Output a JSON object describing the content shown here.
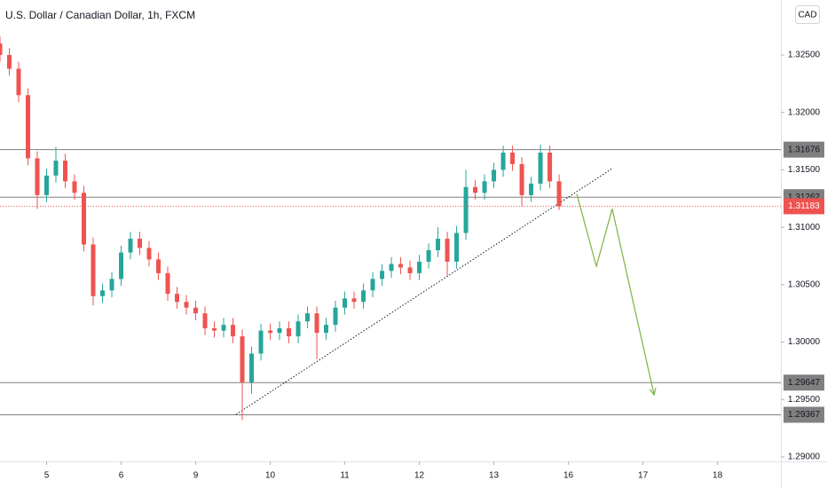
{
  "chart_data": {
    "type": "candlestick",
    "title": "U.S. Dollar / Canadian Dollar, 1h, FXCM",
    "currency": "CAD",
    "up_color": "#26a69a",
    "down_color": "#ef5350",
    "x": [
      0,
      3,
      6,
      9,
      12,
      15,
      18,
      21,
      24,
      27,
      30,
      33,
      36,
      39,
      42,
      45,
      48,
      51,
      54,
      57,
      60,
      63,
      66,
      69,
      72,
      75,
      78,
      81,
      84,
      87,
      90,
      93,
      96,
      99,
      102,
      105,
      108,
      111,
      114,
      117,
      120,
      123,
      126,
      129,
      132,
      135,
      138,
      141,
      144,
      147,
      150,
      153,
      156,
      159,
      162,
      165,
      168,
      171,
      174,
      177,
      180
    ],
    "open": [
      1.326,
      1.325,
      1.3238,
      1.3215,
      1.316,
      1.3128,
      1.3145,
      1.3158,
      1.314,
      1.313,
      1.3085,
      1.304,
      1.3045,
      1.3055,
      1.3078,
      1.309,
      1.3082,
      1.3072,
      1.306,
      1.3042,
      1.3035,
      1.303,
      1.3025,
      1.3012,
      1.301,
      1.3015,
      1.3005,
      1.2965,
      1.299,
      1.301,
      1.3008,
      1.3012,
      1.3005,
      1.3018,
      1.3025,
      1.3008,
      1.3015,
      1.303,
      1.3038,
      1.3035,
      1.3045,
      1.3055,
      1.3062,
      1.3068,
      1.3065,
      1.306,
      1.307,
      1.308,
      1.309,
      1.307,
      1.3095,
      1.3135,
      1.313,
      1.314,
      1.315,
      1.3165,
      1.3155,
      1.3128,
      1.3138,
      1.3165,
      1.314
    ],
    "high": [
      1.3266,
      1.3256,
      1.3244,
      1.3221,
      1.3166,
      1.3151,
      1.317,
      1.3164,
      1.3146,
      1.3136,
      1.3091,
      1.3051,
      1.3061,
      1.3084,
      1.3096,
      1.3096,
      1.3088,
      1.3078,
      1.3066,
      1.3048,
      1.3041,
      1.3036,
      1.3031,
      1.3018,
      1.3021,
      1.3021,
      1.3011,
      1.2996,
      1.3016,
      1.3016,
      1.3018,
      1.3018,
      1.3024,
      1.3031,
      1.3031,
      1.3021,
      1.3036,
      1.3044,
      1.3044,
      1.3051,
      1.3061,
      1.3068,
      1.3074,
      1.3074,
      1.3071,
      1.3076,
      1.3086,
      1.31,
      1.3096,
      1.3101,
      1.315,
      1.3141,
      1.3146,
      1.3156,
      1.3171,
      1.3171,
      1.3161,
      1.3144,
      1.3172,
      1.3171,
      1.3146
    ],
    "low": [
      1.3244,
      1.3232,
      1.3209,
      1.3154,
      1.3116,
      1.3122,
      1.3139,
      1.3134,
      1.3124,
      1.3079,
      1.3032,
      1.3034,
      1.3039,
      1.3049,
      1.3072,
      1.3076,
      1.3066,
      1.3054,
      1.3036,
      1.3029,
      1.3024,
      1.3019,
      1.3006,
      1.3004,
      1.3004,
      1.2999,
      1.2932,
      1.2955,
      1.2984,
      1.3002,
      1.3002,
      1.2999,
      1.2999,
      1.3012,
      1.2985,
      1.3002,
      1.3009,
      1.3024,
      1.3029,
      1.3029,
      1.3039,
      1.3049,
      1.3056,
      1.3059,
      1.3054,
      1.3054,
      1.3064,
      1.3074,
      1.3058,
      1.3064,
      1.3089,
      1.3124,
      1.3124,
      1.3134,
      1.3144,
      1.3149,
      1.3118,
      1.3122,
      1.3132,
      1.3134,
      1.3115
    ],
    "close": [
      1.325,
      1.3238,
      1.3215,
      1.316,
      1.3128,
      1.3145,
      1.3158,
      1.314,
      1.313,
      1.3085,
      1.304,
      1.3045,
      1.3055,
      1.3078,
      1.309,
      1.3082,
      1.3072,
      1.306,
      1.3042,
      1.3035,
      1.303,
      1.3025,
      1.3012,
      1.301,
      1.3015,
      1.3005,
      1.2965,
      1.299,
      1.301,
      1.3008,
      1.3012,
      1.3005,
      1.3018,
      1.3025,
      1.3008,
      1.3015,
      1.303,
      1.3038,
      1.3035,
      1.3045,
      1.3055,
      1.3062,
      1.3068,
      1.3065,
      1.306,
      1.307,
      1.308,
      1.309,
      1.307,
      1.3095,
      1.3135,
      1.313,
      1.314,
      1.315,
      1.3165,
      1.3155,
      1.3128,
      1.3138,
      1.3165,
      1.314,
      1.31183
    ],
    "xlim": [
      0,
      251.4
    ],
    "ylim": [
      1.28961,
      1.32979
    ],
    "xticks": [
      {
        "value": 15,
        "label": "5"
      },
      {
        "value": 39,
        "label": "6"
      },
      {
        "value": 63,
        "label": "9"
      },
      {
        "value": 87,
        "label": "10"
      },
      {
        "value": 111,
        "label": "11"
      },
      {
        "value": 135,
        "label": "12"
      },
      {
        "value": 159,
        "label": "13"
      },
      {
        "value": 183,
        "label": "16"
      },
      {
        "value": 207,
        "label": "17"
      },
      {
        "value": 231,
        "label": "18"
      }
    ],
    "yticks": [
      {
        "value": 1.325,
        "label": "1.32500"
      },
      {
        "value": 1.32,
        "label": "1.32000"
      },
      {
        "value": 1.315,
        "label": "1.31500"
      },
      {
        "value": 1.31,
        "label": "1.31000"
      },
      {
        "value": 1.305,
        "label": "1.30500"
      },
      {
        "value": 1.3,
        "label": "1.30000"
      },
      {
        "value": 1.295,
        "label": "1.29500"
      },
      {
        "value": 1.29,
        "label": "1.29000"
      }
    ],
    "levels": [
      1.31676,
      1.31262,
      1.29647,
      1.29367
    ],
    "level_color": "#808080",
    "last_price": 1.31183,
    "trendline": {
      "x": [
        76,
        197
      ],
      "y": [
        1.2937,
        1.3151
      ]
    },
    "projection": {
      "color": "#7cb342",
      "x": [
        185.7,
        192,
        197.1,
        210.6
      ],
      "y": [
        1.3129,
        1.3066,
        1.3116,
        1.2954
      ]
    }
  }
}
